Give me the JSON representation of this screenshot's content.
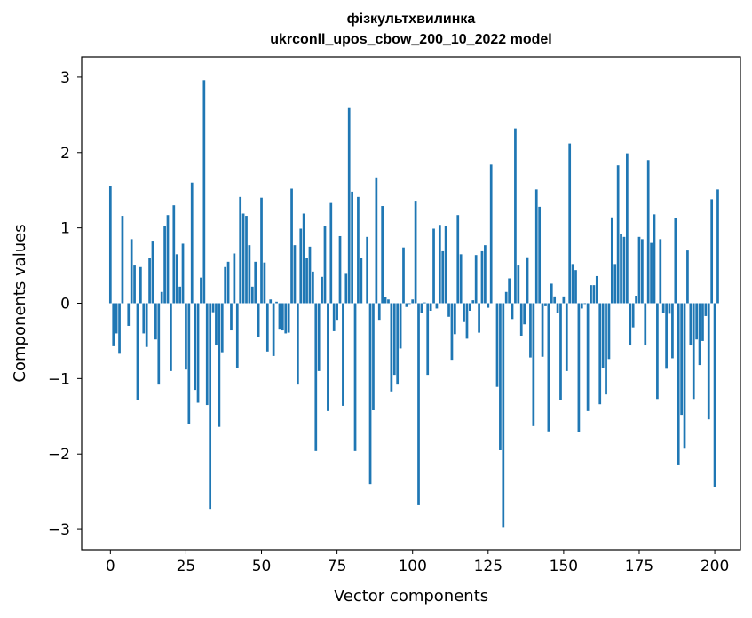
{
  "chart_data": {
    "type": "bar",
    "title": "фізкультхвилинка",
    "subtitle": "ukrconll_upos_cbow_200_10_2022 model",
    "xlabel": "Vector components",
    "ylabel": "Components values",
    "xlim": [
      -9.5,
      208.5
    ],
    "ylim": [
      -3.27,
      3.27
    ],
    "xticks": [
      0,
      25,
      50,
      75,
      100,
      125,
      150,
      175,
      200
    ],
    "yticks": [
      -3,
      -2,
      -1,
      0,
      1,
      2,
      3
    ],
    "xtick_labels": [
      "0",
      "25",
      "50",
      "75",
      "100",
      "125",
      "150",
      "175",
      "200"
    ],
    "ytick_labels": [
      "−3",
      "−2",
      "−1",
      "0",
      "1",
      "2",
      "3"
    ],
    "grid": false,
    "bar_color": "#1f77b4",
    "series": [
      {
        "values": [
          1.55,
          -0.57,
          -0.4,
          -0.67,
          1.16,
          0.0,
          -0.3,
          0.85,
          0.5,
          -1.28,
          0.48,
          -0.4,
          -0.58,
          0.6,
          0.83,
          -0.48,
          -1.08,
          0.15,
          1.03,
          1.17,
          -0.9,
          1.3,
          0.65,
          0.22,
          0.79,
          -0.88,
          -1.6,
          1.6,
          -1.15,
          -1.32,
          0.34,
          2.96,
          -1.35,
          -2.73,
          -0.12,
          -0.56,
          -1.64,
          -0.65,
          0.48,
          0.55,
          -0.36,
          0.66,
          -0.86,
          1.41,
          1.19,
          1.16,
          0.77,
          0.22,
          0.55,
          -0.45,
          1.4,
          0.54,
          -0.64,
          0.05,
          -0.7,
          0.02,
          -0.35,
          -0.36,
          -0.4,
          -0.39,
          1.52,
          0.77,
          -1.08,
          0.99,
          1.19,
          0.6,
          0.75,
          0.42,
          -1.96,
          -0.9,
          0.35,
          1.02,
          -1.43,
          1.33,
          -0.37,
          -0.22,
          0.89,
          -1.36,
          0.39,
          2.59,
          1.48,
          -1.96,
          1.41,
          0.6,
          0.0,
          0.88,
          -2.4,
          -1.42,
          1.67,
          -0.22,
          1.29,
          0.08,
          0.05,
          -1.17,
          -0.95,
          -1.08,
          -0.6,
          0.74,
          -0.05,
          -0.01,
          0.05,
          1.36,
          -2.68,
          -0.13,
          0.01,
          -0.95,
          -0.1,
          0.99,
          -0.07,
          1.04,
          0.69,
          1.02,
          -0.18,
          -0.75,
          -0.41,
          1.17,
          0.65,
          -0.25,
          -0.47,
          -0.1,
          0.04,
          0.64,
          -0.39,
          0.69,
          0.77,
          -0.06,
          1.84,
          0.0,
          -1.11,
          -1.95,
          -2.98,
          0.15,
          0.33,
          -0.21,
          2.32,
          0.5,
          -0.43,
          -0.28,
          0.61,
          -0.72,
          -1.63,
          1.51,
          1.28,
          -0.71,
          -0.04,
          -1.7,
          0.26,
          0.09,
          -0.13,
          -1.28,
          0.09,
          -0.9,
          2.12,
          0.52,
          0.44,
          -1.71,
          -0.07,
          -0.01,
          -1.43,
          0.24,
          0.24,
          0.36,
          -1.34,
          -0.86,
          -1.21,
          -0.74,
          1.14,
          0.52,
          1.83,
          0.92,
          0.88,
          1.99,
          -0.56,
          -0.32,
          0.1,
          0.88,
          0.85,
          -0.56,
          1.9,
          0.8,
          1.18,
          -1.27,
          0.85,
          -0.13,
          -0.87,
          -0.14,
          -0.73,
          1.13,
          -2.15,
          -1.48,
          -1.93,
          0.7,
          -0.56,
          -1.27,
          -0.48,
          -0.82,
          -0.5,
          -0.17,
          -1.54,
          1.38,
          -2.44,
          1.51
        ]
      }
    ]
  }
}
